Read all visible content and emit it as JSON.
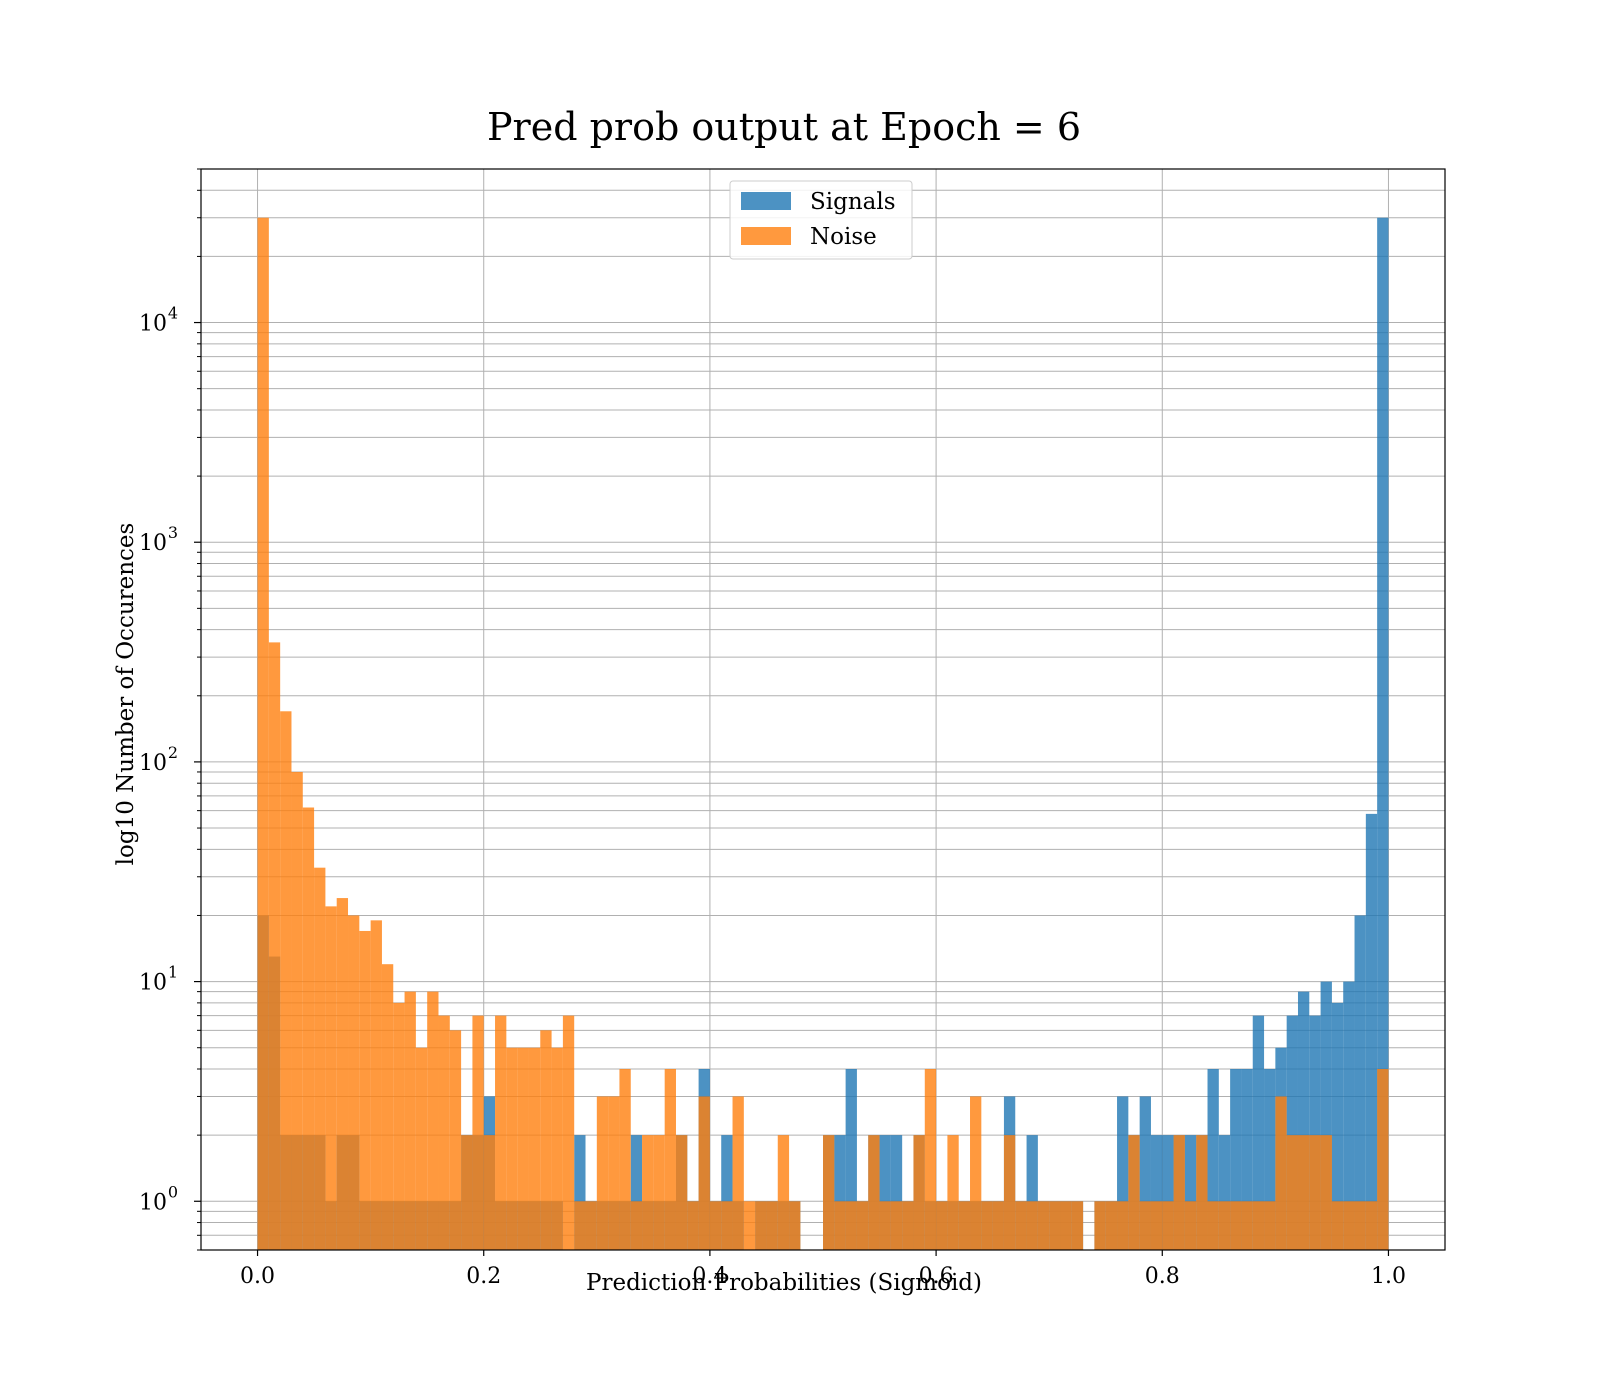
{
  "chart_data": {
    "type": "bar",
    "title": "Pred prob output at Epoch = 6",
    "xlabel": "Prediction Probabilities (Sigmoid)",
    "ylabel": "log10 Number of Occurences",
    "xlim": [
      -0.05,
      1.05
    ],
    "ylim": [
      0.6,
      50000
    ],
    "yscale": "log",
    "grid": true,
    "legend": "upper center",
    "x_ticks": [
      {
        "value": 0.0,
        "label": "0.0"
      },
      {
        "value": 0.2,
        "label": "0.2"
      },
      {
        "value": 0.4,
        "label": "0.4"
      },
      {
        "value": 0.6,
        "label": "0.6"
      },
      {
        "value": 0.8,
        "label": "0.8"
      },
      {
        "value": 1.0,
        "label": "1.0"
      }
    ],
    "y_ticks": [
      {
        "value": 1,
        "base": "10",
        "exp": "0"
      },
      {
        "value": 10,
        "base": "10",
        "exp": "1"
      },
      {
        "value": 100,
        "base": "10",
        "exp": "2"
      },
      {
        "value": 1000,
        "base": "10",
        "exp": "3"
      },
      {
        "value": 10000,
        "base": "10",
        "exp": "4"
      }
    ],
    "bins": {
      "start": 0.0,
      "end": 1.0,
      "count": 100
    },
    "series": [
      {
        "name": "Signals",
        "color": "#1f77b4",
        "alpha": 0.8,
        "values": [
          20,
          13,
          2,
          2,
          2,
          2,
          1,
          2,
          2,
          1,
          1,
          1,
          1,
          1,
          1,
          1,
          1,
          1,
          2,
          2,
          3,
          1,
          1,
          1,
          1,
          1,
          1,
          0,
          2,
          1,
          1,
          1,
          1,
          2,
          1,
          1,
          1,
          2,
          1,
          4,
          1,
          2,
          1,
          0,
          1,
          1,
          1,
          1,
          0,
          0,
          2,
          2,
          4,
          1,
          2,
          2,
          2,
          1,
          2,
          1,
          1,
          1,
          1,
          1,
          1,
          1,
          3,
          1,
          2,
          1,
          1,
          1,
          1,
          0,
          1,
          1,
          3,
          2,
          3,
          2,
          2,
          2,
          2,
          2,
          4,
          2,
          4,
          4,
          7,
          4,
          5,
          7,
          9,
          7,
          10,
          8,
          10,
          20,
          58,
          30000
        ]
      },
      {
        "name": "Noise",
        "color": "#ff7f0e",
        "alpha": 0.8,
        "values": [
          30000,
          350,
          170,
          90,
          62,
          33,
          22,
          24,
          20,
          17,
          19,
          12,
          8,
          9,
          5,
          9,
          7,
          6,
          2,
          7,
          2,
          7,
          5,
          5,
          5,
          6,
          5,
          7,
          1,
          1,
          3,
          3,
          4,
          1,
          2,
          2,
          4,
          2,
          1,
          3,
          1,
          1,
          3,
          1,
          1,
          1,
          2,
          1,
          0,
          0,
          2,
          1,
          1,
          1,
          2,
          1,
          1,
          1,
          2,
          4,
          1,
          2,
          1,
          3,
          1,
          1,
          2,
          1,
          1,
          1,
          1,
          1,
          1,
          0,
          1,
          1,
          1,
          2,
          1,
          1,
          1,
          2,
          1,
          2,
          1,
          1,
          1,
          1,
          1,
          1,
          3,
          2,
          2,
          2,
          2,
          1,
          1,
          1,
          1,
          4
        ]
      }
    ]
  }
}
